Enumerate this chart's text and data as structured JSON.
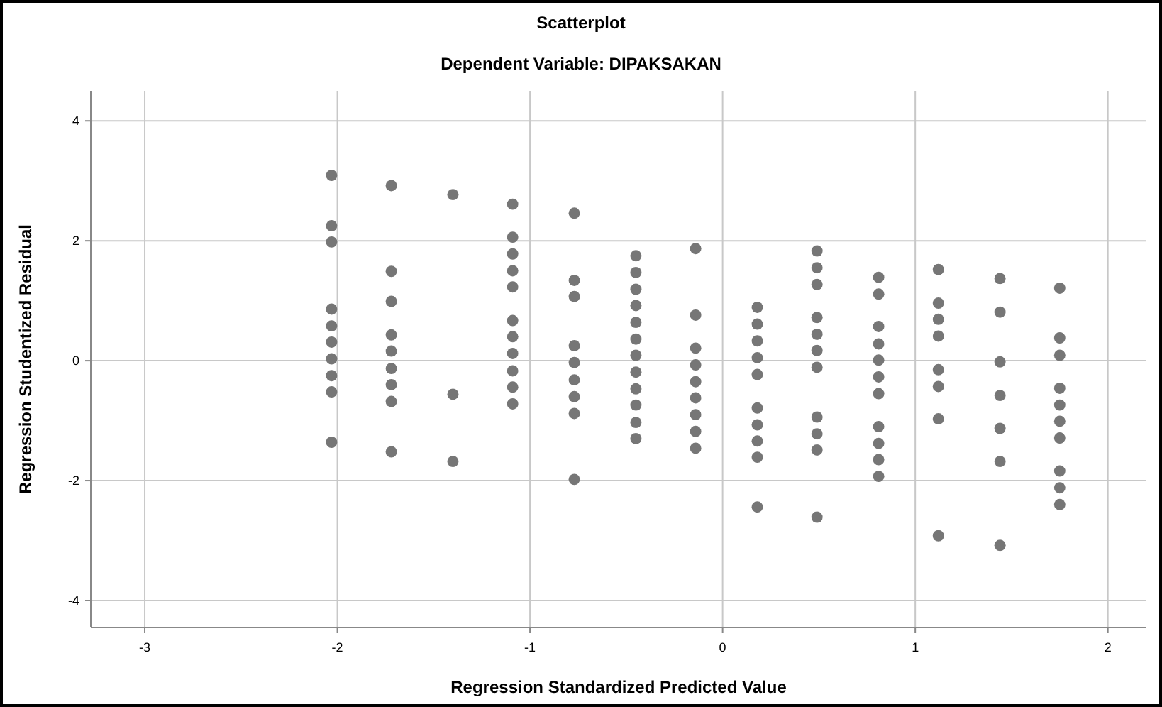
{
  "chart_data": {
    "type": "scatter",
    "title": "Scatterplot",
    "subtitle": "Dependent Variable: DIPAKSAKAN",
    "xlabel": "Regression Standardized Predicted Value",
    "ylabel": "Regression Studentized Residual",
    "xlim": [
      -3.28,
      2.2
    ],
    "ylim": [
      -4.45,
      4.5
    ],
    "xticks": [
      -3,
      -2,
      -1,
      0,
      1,
      2
    ],
    "yticks": [
      -4,
      -2,
      0,
      2,
      4
    ],
    "grid": true,
    "marker": "circle",
    "series": [
      {
        "color": "#767676",
        "x": [
          -2.03,
          -2.03,
          -2.03,
          -2.03,
          -2.03,
          -2.03,
          -2.03,
          -2.03,
          -2.03,
          -2.03,
          -1.72,
          -1.72,
          -1.72,
          -1.72,
          -1.72,
          -1.72,
          -1.72,
          -1.72,
          -1.72,
          -1.4,
          -1.4,
          -1.4,
          -1.09,
          -1.09,
          -1.09,
          -1.09,
          -1.09,
          -1.09,
          -1.09,
          -1.09,
          -1.09,
          -1.09,
          -1.09,
          -0.77,
          -0.77,
          -0.77,
          -0.77,
          -0.77,
          -0.77,
          -0.77,
          -0.77,
          -0.77,
          -0.45,
          -0.45,
          -0.45,
          -0.45,
          -0.45,
          -0.45,
          -0.45,
          -0.45,
          -0.45,
          -0.45,
          -0.45,
          -0.45,
          -0.14,
          -0.14,
          -0.14,
          -0.14,
          -0.14,
          -0.14,
          -0.14,
          -0.14,
          -0.14,
          0.18,
          0.18,
          0.18,
          0.18,
          0.18,
          0.18,
          0.18,
          0.18,
          0.18,
          0.18,
          0.49,
          0.49,
          0.49,
          0.49,
          0.49,
          0.49,
          0.49,
          0.49,
          0.49,
          0.49,
          0.49,
          0.81,
          0.81,
          0.81,
          0.81,
          0.81,
          0.81,
          0.81,
          0.81,
          0.81,
          0.81,
          0.81,
          1.12,
          1.12,
          1.12,
          1.12,
          1.12,
          1.12,
          1.12,
          1.12,
          1.44,
          1.44,
          1.44,
          1.44,
          1.44,
          1.44,
          1.44,
          1.75,
          1.75,
          1.75,
          1.75,
          1.75,
          1.75,
          1.75,
          1.75,
          1.75,
          1.75
        ],
        "values": [
          3.09,
          2.25,
          1.98,
          0.86,
          0.58,
          0.31,
          0.03,
          -0.25,
          -0.52,
          -1.36,
          2.92,
          1.49,
          0.99,
          0.43,
          0.16,
          -0.13,
          -0.4,
          -0.68,
          -1.52,
          2.77,
          -0.56,
          -1.68,
          2.61,
          2.06,
          1.78,
          1.5,
          1.23,
          0.67,
          0.4,
          0.12,
          -0.17,
          -0.44,
          -0.72,
          2.46,
          1.34,
          1.07,
          0.25,
          -0.03,
          -0.32,
          -0.6,
          -0.88,
          -1.98,
          1.75,
          1.47,
          1.19,
          0.92,
          0.64,
          0.36,
          0.09,
          -0.19,
          -0.47,
          -0.74,
          -1.03,
          -1.3,
          1.87,
          0.76,
          0.21,
          -0.07,
          -0.35,
          -0.62,
          -0.9,
          -1.18,
          -1.46,
          0.89,
          0.61,
          0.33,
          0.05,
          -0.23,
          -0.79,
          -1.07,
          -1.34,
          -1.61,
          -2.44,
          1.83,
          1.55,
          1.27,
          0.72,
          0.44,
          0.17,
          -0.11,
          -0.94,
          -1.22,
          -1.49,
          -2.61,
          1.39,
          1.11,
          0.57,
          0.28,
          0.01,
          -0.27,
          -0.55,
          -1.1,
          -1.38,
          -1.65,
          -1.93,
          1.52,
          0.96,
          0.69,
          0.41,
          -0.15,
          -0.43,
          -0.97,
          -2.92,
          1.37,
          0.81,
          -0.02,
          -0.58,
          -1.13,
          -1.68,
          -3.08,
          1.21,
          0.38,
          0.09,
          -0.46,
          -0.74,
          -1.01,
          -1.29,
          -1.84,
          -2.12,
          -2.4
        ]
      }
    ]
  }
}
